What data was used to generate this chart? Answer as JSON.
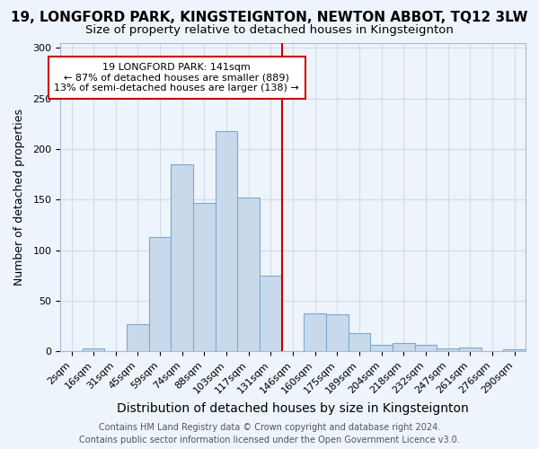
{
  "title1": "19, LONGFORD PARK, KINGSTEIGNTON, NEWTON ABBOT, TQ12 3LW",
  "title2": "Size of property relative to detached houses in Kingsteignton",
  "xlabel": "Distribution of detached houses by size in Kingsteignton",
  "ylabel": "Number of detached properties",
  "bar_labels": [
    "2sqm",
    "16sqm",
    "31sqm",
    "45sqm",
    "59sqm",
    "74sqm",
    "88sqm",
    "103sqm",
    "117sqm",
    "131sqm",
    "146sqm",
    "160sqm",
    "175sqm",
    "189sqm",
    "204sqm",
    "218sqm",
    "232sqm",
    "247sqm",
    "261sqm",
    "276sqm",
    "290sqm"
  ],
  "bar_values": [
    0,
    3,
    0,
    27,
    113,
    185,
    147,
    218,
    152,
    75,
    0,
    38,
    37,
    18,
    7,
    8,
    7,
    3,
    4,
    0,
    2
  ],
  "bar_color": "#c9d9ec",
  "bar_edge_color": "#7aaad0",
  "grid_color": "#d0dde8",
  "bg_color": "#eef4fb",
  "vline_color": "#cc0000",
  "annotation_line1": "19 LONGFORD PARK: 141sqm",
  "annotation_line2": "← 87% of detached houses are smaller (889)",
  "annotation_line3": "13% of semi-detached houses are larger (138) →",
  "annotation_box_color": "#ffffff",
  "annotation_box_edge": "#cc0000",
  "ylim": [
    0,
    305
  ],
  "yticks": [
    0,
    50,
    100,
    150,
    200,
    250,
    300
  ],
  "footer": "Contains HM Land Registry data © Crown copyright and database right 2024.\nContains public sector information licensed under the Open Government Licence v3.0.",
  "title1_fontsize": 11,
  "title2_fontsize": 9.5,
  "xlabel_fontsize": 10,
  "ylabel_fontsize": 9,
  "tick_fontsize": 8,
  "annotation_fontsize": 8,
  "footer_fontsize": 7
}
